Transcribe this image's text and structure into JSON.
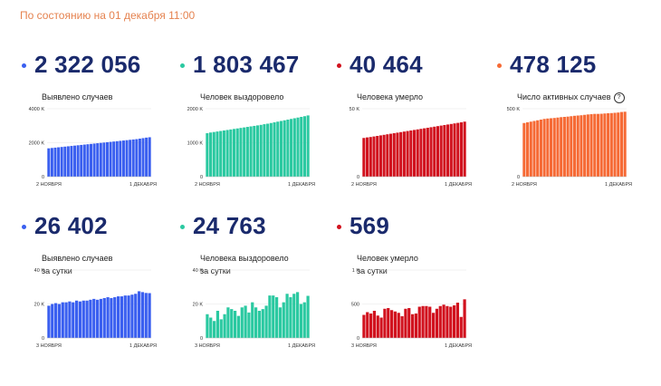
{
  "header": {
    "updated_text": "По состоянию на 01 декабря 11:00"
  },
  "chart_data": [
    {
      "type": "bar",
      "id": "total_cases",
      "value_text": "2 322 056",
      "label": "Выявлено случаев",
      "color": "#3a5ff0",
      "ylim": [
        0,
        4000
      ],
      "yticks": [
        0,
        2000,
        4000
      ],
      "ytick_labels": [
        "0",
        "2000 K",
        "4000 K"
      ],
      "x_start": "2 НОЯБРЯ",
      "x_end": "1 ДЕКАБРЯ",
      "values": [
        1670,
        1690,
        1710,
        1730,
        1750,
        1770,
        1790,
        1810,
        1830,
        1850,
        1870,
        1890,
        1910,
        1930,
        1950,
        1970,
        1990,
        2010,
        2030,
        2050,
        2070,
        2090,
        2110,
        2130,
        2150,
        2170,
        2190,
        2210,
        2240,
        2270,
        2300,
        2322
      ]
    },
    {
      "type": "bar",
      "id": "recovered",
      "value_text": "1 803 467",
      "label": "Человек выздоровело",
      "color": "#2bc9a1",
      "ylim": [
        0,
        2000
      ],
      "yticks": [
        0,
        1000,
        2000
      ],
      "ytick_labels": [
        "0",
        "1000 K",
        "2000 K"
      ],
      "x_start": "2 НОЯБРЯ",
      "x_end": "1 ДЕКАБРЯ",
      "values": [
        1280,
        1300,
        1315,
        1330,
        1345,
        1360,
        1375,
        1390,
        1405,
        1420,
        1435,
        1450,
        1465,
        1480,
        1495,
        1510,
        1525,
        1545,
        1560,
        1580,
        1600,
        1620,
        1640,
        1660,
        1680,
        1700,
        1720,
        1740,
        1760,
        1780,
        1803
      ]
    },
    {
      "type": "bar",
      "id": "deaths",
      "value_text": "40 464",
      "label": "Человека умерло",
      "color": "#d1121e",
      "ylim": [
        0,
        50
      ],
      "yticks": [
        0,
        50
      ],
      "ytick_labels": [
        "0",
        "50 K"
      ],
      "x_start": "2 НОЯБРЯ",
      "x_end": "1 ДЕКАБРЯ",
      "values": [
        28.5,
        28.9,
        29.2,
        29.6,
        30.0,
        30.4,
        30.8,
        31.2,
        31.6,
        32.0,
        32.4,
        32.8,
        33.2,
        33.6,
        34.0,
        34.4,
        34.8,
        35.2,
        35.6,
        36.0,
        36.4,
        36.8,
        37.2,
        37.6,
        38.0,
        38.4,
        38.8,
        39.2,
        39.6,
        40.0,
        40.5
      ]
    },
    {
      "type": "bar",
      "id": "active",
      "value_text": "478 125",
      "label": "Число активных случаев",
      "color": "#f66a35",
      "ylim": [
        0,
        500
      ],
      "yticks": [
        0,
        500
      ],
      "ytick_labels": [
        "0",
        "500 K"
      ],
      "x_start": "2 НОЯБРЯ",
      "x_end": "1 ДЕКАБРЯ",
      "help_icon": "?",
      "values": [
        395,
        400,
        405,
        410,
        415,
        420,
        425,
        428,
        430,
        432,
        435,
        438,
        440,
        442,
        445,
        448,
        450,
        452,
        455,
        458,
        460,
        462,
        462,
        463,
        465,
        467,
        468,
        470,
        472,
        476,
        478
      ]
    },
    {
      "type": "bar",
      "id": "daily_cases",
      "value_text": "26 402",
      "label": "Выявлено случаев\nза сутки",
      "color": "#3a5ff0",
      "ylim": [
        0,
        40
      ],
      "yticks": [
        0,
        20,
        40
      ],
      "ytick_labels": [
        "0",
        "20 K",
        "40 K"
      ],
      "x_start": "3 НОЯБРЯ",
      "x_end": "1 ДЕКАБРЯ",
      "values": [
        19,
        20,
        20.5,
        20,
        21,
        21,
        21.5,
        21,
        22,
        21.5,
        22,
        22,
        22.5,
        23,
        22.5,
        23,
        23.5,
        24,
        23.5,
        24,
        24.5,
        24.5,
        25,
        25,
        25.5,
        26,
        27.5,
        27,
        26.5,
        26.4
      ]
    },
    {
      "type": "bar",
      "id": "daily_recovered",
      "value_text": "24 763",
      "label": "Человека выздоровело\nза сутки",
      "color": "#2bc9a1",
      "ylim": [
        0,
        40
      ],
      "yticks": [
        0,
        20,
        40
      ],
      "ytick_labels": [
        "0",
        "20 K",
        "40 K"
      ],
      "x_start": "3 НОЯБРЯ",
      "x_end": "1 ДЕКАБРЯ",
      "values": [
        14,
        12,
        10,
        16,
        11,
        14,
        18,
        17,
        16,
        13,
        18,
        19,
        15,
        21,
        18,
        16,
        17,
        19,
        25,
        25,
        24,
        18,
        21,
        26,
        24,
        26,
        27,
        20,
        21,
        24.8
      ]
    },
    {
      "type": "bar",
      "id": "daily_deaths",
      "value_text": "569",
      "label": "Человек умерло\nза сутки",
      "color": "#d1121e",
      "ylim": [
        0,
        1000
      ],
      "yticks": [
        0,
        500,
        1000
      ],
      "ytick_labels": [
        "0",
        "500",
        "1 K"
      ],
      "x_start": "3 НОЯБРЯ",
      "x_end": "1 ДЕКАБРЯ",
      "values": [
        340,
        380,
        360,
        400,
        330,
        300,
        430,
        440,
        410,
        390,
        370,
        320,
        430,
        440,
        350,
        360,
        460,
        470,
        470,
        460,
        370,
        430,
        470,
        490,
        470,
        460,
        480,
        520,
        310,
        569
      ]
    }
  ]
}
